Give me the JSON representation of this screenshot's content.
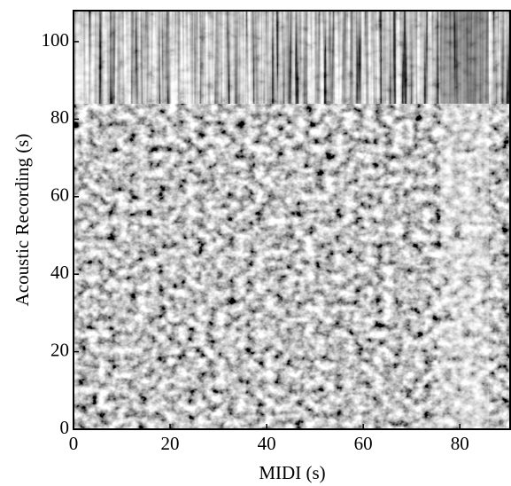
{
  "chart_data": {
    "type": "heatmap",
    "x_label": "MIDI (s)",
    "y_label": "Acoustic Recording (s)",
    "xlim": [
      0,
      90.6
    ],
    "ylim": [
      0,
      108
    ],
    "xticks": [
      0,
      20,
      40,
      60,
      80
    ],
    "yticks": [
      0,
      20,
      40,
      60,
      80,
      100
    ],
    "colormap": "gray"
  }
}
